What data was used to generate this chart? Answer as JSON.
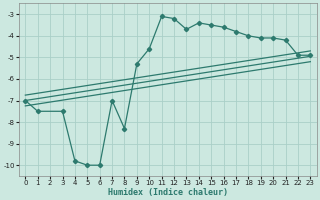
{
  "xlabel": "Humidex (Indice chaleur)",
  "background_color": "#cce8e0",
  "grid_color": "#aacfc8",
  "line_color": "#2d7a6e",
  "x_data": [
    0,
    1,
    3,
    4,
    5,
    6,
    7,
    8,
    9,
    10,
    11,
    12,
    13,
    14,
    15,
    16,
    17,
    18,
    19,
    20,
    21,
    22,
    23
  ],
  "y_main": [
    -7.0,
    -7.5,
    -7.5,
    -9.8,
    -10.0,
    -10.0,
    -7.0,
    -8.3,
    -5.3,
    -4.6,
    -3.1,
    -3.2,
    -3.7,
    -3.4,
    -3.5,
    -3.6,
    -3.8,
    -4.0,
    -4.1,
    -4.1,
    -4.2,
    -4.9,
    -4.9
  ],
  "trend_lines": [
    {
      "x0": 0,
      "y0": -7.0,
      "x1": 23,
      "y1": -4.95
    },
    {
      "x0": 0,
      "y0": -6.75,
      "x1": 23,
      "y1": -4.7
    },
    {
      "x0": 0,
      "y0": -7.25,
      "x1": 23,
      "y1": -5.2
    }
  ],
  "ylim": [
    -10.5,
    -2.5
  ],
  "xlim": [
    -0.5,
    23.5
  ],
  "yticks": [
    -10,
    -9,
    -8,
    -7,
    -6,
    -5,
    -4,
    -3
  ],
  "xticks": [
    0,
    1,
    2,
    3,
    4,
    5,
    6,
    7,
    8,
    9,
    10,
    11,
    12,
    13,
    14,
    15,
    16,
    17,
    18,
    19,
    20,
    21,
    22,
    23
  ],
  "tick_fontsize": 5.0,
  "label_fontsize": 6.0
}
